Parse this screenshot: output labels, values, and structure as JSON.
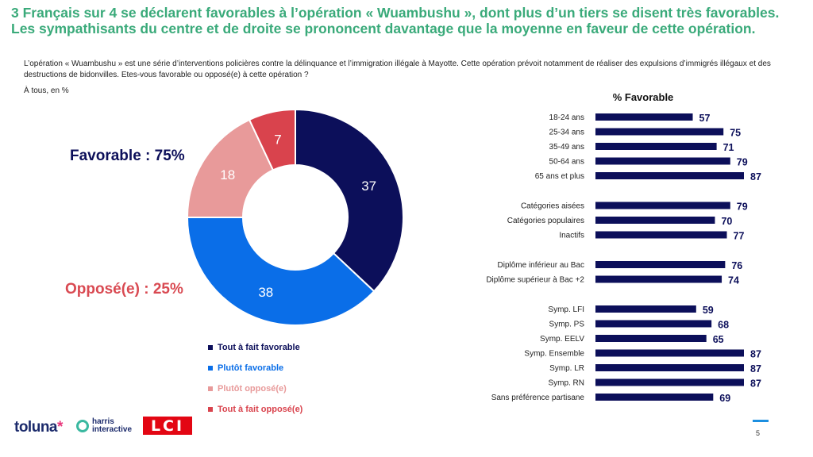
{
  "header": {
    "title": "3 Français sur 4 se déclarent favorables à l’opération « Wuambushu », dont plus d’un tiers se disent très favorables. Les sympathisants du centre et de droite se prononcent davantage que la moyenne en faveur de cette opération.",
    "question": "L’opération « Wuambushu » est une série d’interventions policières contre la délinquance et l’immigration illégale à Mayotte. Cette opération prévoit notamment de réaliser des expulsions d’immigrés illégaux et des destructions de bidonvilles. Etes-vous favorable ou opposé(e) à cette opération ?",
    "base": "À tous, en %"
  },
  "totals": {
    "favorable": "Favorable : 75%",
    "oppose": "Opposé(e) : 25%"
  },
  "colors": {
    "dark_navy": "#0c0f5a",
    "blue": "#0a6ee8",
    "pink": "#e89a9a",
    "red": "#d9434d",
    "bar": "#0c0f5a",
    "title_green": "#3aaa7a"
  },
  "chart_data": [
    {
      "type": "pie",
      "title": "",
      "categories": [
        "Tout à fait favorable",
        "Plutôt favorable",
        "Plutôt opposé(e)",
        "Tout à fait opposé(e)"
      ],
      "values": [
        37,
        38,
        18,
        7
      ],
      "colors": [
        "#0c0f5a",
        "#0a6ee8",
        "#e89a9a",
        "#d9434d"
      ],
      "donut": true,
      "legend": "bottom"
    },
    {
      "type": "bar",
      "orientation": "horizontal",
      "title": "% Favorable",
      "xlim": [
        0,
        87
      ],
      "groups": [
        {
          "categories": [
            "18-24 ans",
            "25-34 ans",
            "35-49 ans",
            "50-64 ans",
            "65 ans et plus"
          ],
          "values": [
            57,
            75,
            71,
            79,
            87
          ]
        },
        {
          "categories": [
            "Catégories aisées",
            "Catégories populaires",
            "Inactifs"
          ],
          "values": [
            79,
            70,
            77
          ]
        },
        {
          "categories": [
            "Diplôme inférieur au Bac",
            "Diplôme supérieur à Bac +2"
          ],
          "values": [
            76,
            74
          ]
        },
        {
          "categories": [
            "Symp. LFI",
            "Symp. PS",
            "Symp. EELV",
            "Symp. Ensemble",
            "Symp. LR",
            "Symp. RN",
            "Sans préférence partisane"
          ],
          "values": [
            59,
            68,
            65,
            87,
            87,
            87,
            69
          ]
        }
      ]
    }
  ],
  "footer": {
    "logo_toluna": "toluna",
    "logo_toluna_star": "*",
    "logo_harris_line1": "harris",
    "logo_harris_line2": "interactive",
    "logo_lci": "LCI",
    "page_number": "5"
  }
}
